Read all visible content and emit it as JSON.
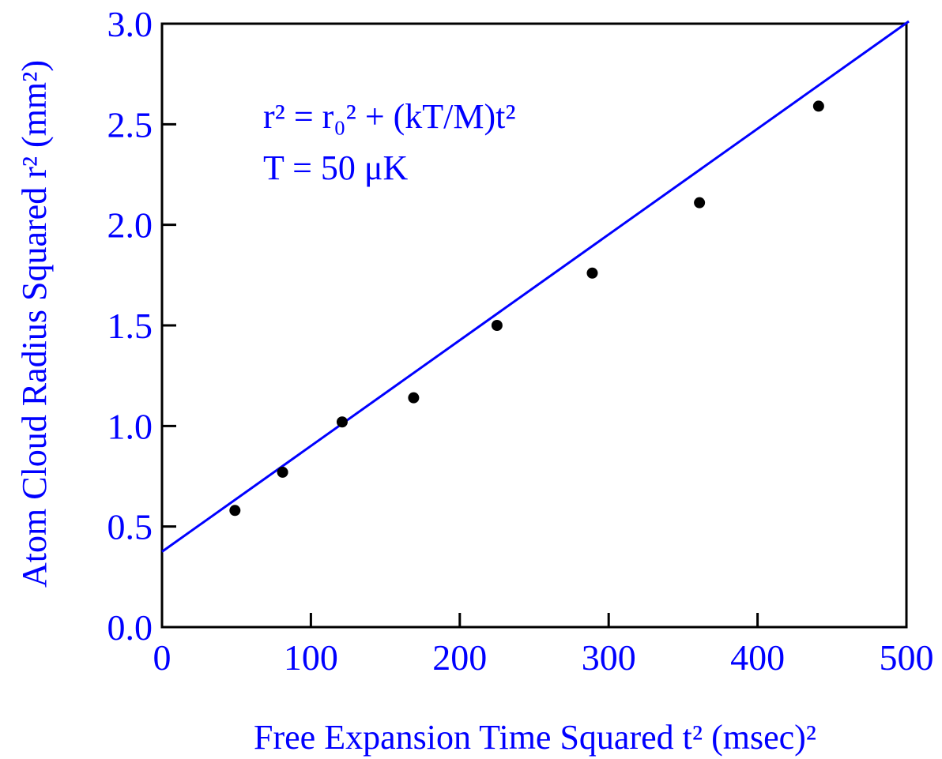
{
  "chart_data": {
    "type": "scatter",
    "title": "",
    "xlabel": "Free Expansion Time Squared t² (msec)²",
    "ylabel": "Atom Cloud Radius Squared r² (mm²)",
    "xlim": [
      0,
      500
    ],
    "ylim": [
      0,
      3.0
    ],
    "x_ticks": [
      "0",
      "100",
      "200",
      "300",
      "400",
      "500"
    ],
    "y_ticks": [
      "0.0",
      "0.5",
      "1.0",
      "1.5",
      "2.0",
      "2.5",
      "3.0"
    ],
    "x_tick_values": [
      0,
      100,
      200,
      300,
      400,
      500
    ],
    "y_tick_values": [
      0,
      0.5,
      1.0,
      1.5,
      2.0,
      2.5,
      3.0
    ],
    "grid": false,
    "legend": "none",
    "series": [
      {
        "x": [
          49,
          81,
          121,
          169,
          225,
          289,
          361,
          441
        ],
        "y": [
          0.58,
          0.77,
          1.02,
          1.14,
          1.5,
          1.76,
          2.11,
          2.59
        ]
      }
    ],
    "fit_line": {
      "intercept": 0.375,
      "slope": 0.00525
    },
    "annotations": [
      "r² = r₀² + (kT/M)t²",
      "T = 50 μK"
    ],
    "colors": {
      "text": "#0000ff",
      "fit": "#0000ff",
      "points": "#000000",
      "frame": "#000000"
    }
  }
}
